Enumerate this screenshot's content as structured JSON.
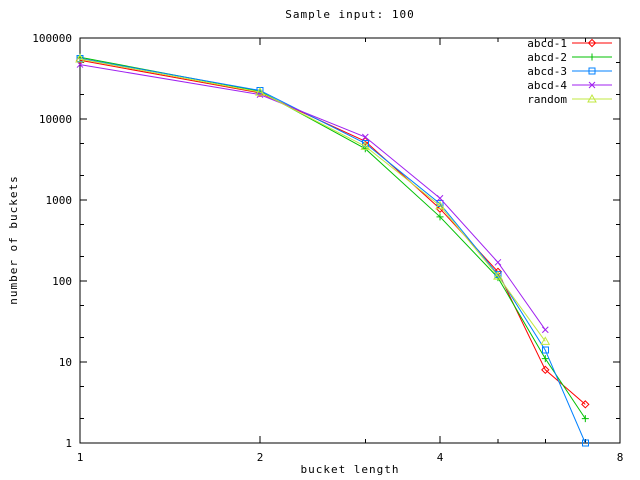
{
  "window": {
    "background": "#ffffff"
  },
  "chart_data": {
    "type": "line",
    "title": "Sample input: 100",
    "xlabel": "bucket length",
    "ylabel": "number of buckets",
    "x_scale": "log2",
    "y_scale": "log10",
    "xlim": [
      1,
      8
    ],
    "ylim": [
      1,
      100000
    ],
    "x_ticks": [
      1,
      2,
      4,
      8
    ],
    "x_minor_ticks": [
      3,
      5,
      6,
      7
    ],
    "y_ticks": [
      1,
      10,
      100,
      1000,
      10000,
      100000
    ],
    "y_minor_multipliers": [
      2,
      5
    ],
    "grid": false,
    "legend_position": "top-right-inside",
    "x": [
      1,
      2,
      3,
      4,
      5,
      6,
      7
    ],
    "series": [
      {
        "name": "abcd-1",
        "color": "#ff0000",
        "marker": "diamond",
        "values": [
          53000,
          21000,
          5300,
          780,
          130,
          8,
          3
        ]
      },
      {
        "name": "abcd-2",
        "color": "#00c000",
        "marker": "plus",
        "values": [
          58000,
          22000,
          4300,
          620,
          110,
          11,
          2
        ]
      },
      {
        "name": "abcd-3",
        "color": "#0080ff",
        "marker": "square",
        "values": [
          56000,
          22500,
          5000,
          900,
          120,
          14,
          1
        ]
      },
      {
        "name": "abcd-4",
        "color": "#a020f0",
        "marker": "x",
        "values": [
          47000,
          20000,
          6000,
          1050,
          170,
          25,
          null
        ]
      },
      {
        "name": "random",
        "color": "#c0e840",
        "marker": "triangle",
        "values": [
          55000,
          21500,
          4600,
          850,
          115,
          18,
          null
        ]
      }
    ]
  }
}
